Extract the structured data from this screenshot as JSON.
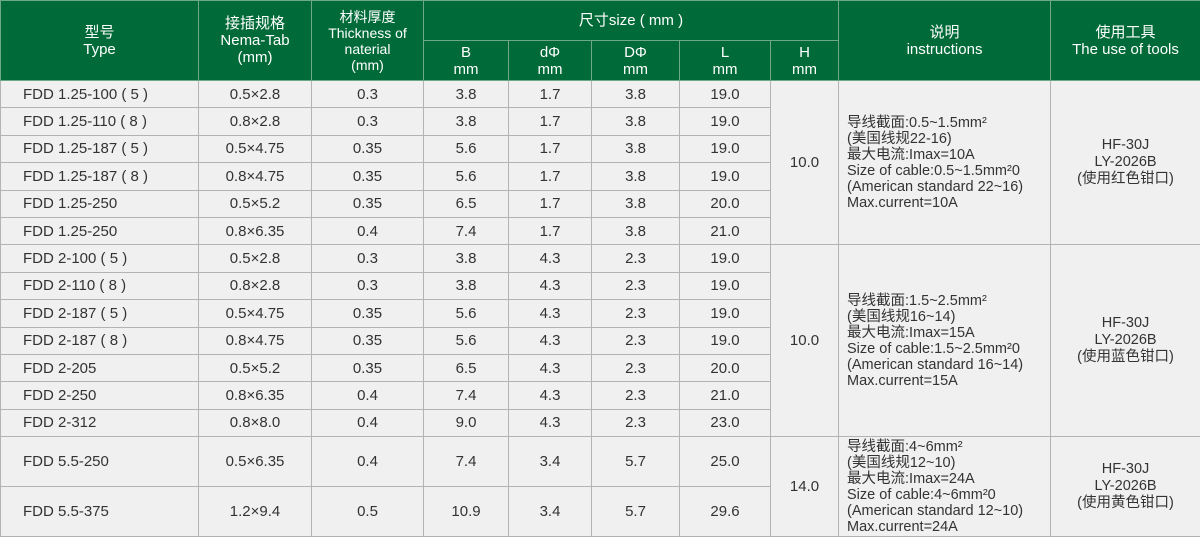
{
  "header": {
    "type": "型号\nType",
    "nema": "接插规格\nNema-Tab\n(mm)",
    "thickness": "材料厚度\nThickness of\nnaterial\n(mm)",
    "size": "尺寸size ( mm )",
    "b": "B\nmm",
    "d": "dΦ\nmm",
    "dd": "DΦ\nmm",
    "l": "L\nmm",
    "h": "H\nmm",
    "instructions": "说明\ninstructions",
    "tools": "使用工具\nThe use of tools"
  },
  "colors": {
    "header": "#006b38",
    "body": "#f0f0f0"
  },
  "groups": [
    {
      "h": "10.0",
      "note": "导线截面:0.5~1.5mm²\n(美国线规22-16)\n最大电流:Imax=10A\nSize of cable:0.5~1.5mm²0\n(American standard 22~16)\nMax.current=10A",
      "tool": "HF-30J\nLY-2026B\n(使用红色钳口)",
      "rows": [
        [
          "FDD 1.25-100 ( 5 )",
          "0.5×2.8",
          "0.3",
          "3.8",
          "1.7",
          "3.8",
          "19.0"
        ],
        [
          "FDD 1.25-110 ( 8 )",
          "0.8×2.8",
          "0.3",
          "3.8",
          "1.7",
          "3.8",
          "19.0"
        ],
        [
          "FDD 1.25-187 ( 5 )",
          "0.5×4.75",
          "0.35",
          "5.6",
          "1.7",
          "3.8",
          "19.0"
        ],
        [
          "FDD 1.25-187 ( 8 )",
          "0.8×4.75",
          "0.35",
          "5.6",
          "1.7",
          "3.8",
          "19.0"
        ],
        [
          "FDD 1.25-250",
          "0.5×5.2",
          "0.35",
          "6.5",
          "1.7",
          "3.8",
          "20.0"
        ],
        [
          "FDD 1.25-250",
          "0.8×6.35",
          "0.4",
          "7.4",
          "1.7",
          "3.8",
          "21.0"
        ]
      ]
    },
    {
      "h": "10.0",
      "note": "导线截面:1.5~2.5mm²\n(美国线规16~14)\n最大电流:Imax=15A\nSize of cable:1.5~2.5mm²0\n(American standard 16~14)\nMax.current=15A",
      "tool": "HF-30J\nLY-2026B\n(使用蓝色钳口)",
      "rows": [
        [
          "FDD 2-100 ( 5 )",
          "0.5×2.8",
          "0.3",
          "3.8",
          "4.3",
          "2.3",
          "19.0"
        ],
        [
          "FDD 2-110 ( 8 )",
          "0.8×2.8",
          "0.3",
          "3.8",
          "4.3",
          "2.3",
          "19.0"
        ],
        [
          "FDD 2-187 ( 5 )",
          "0.5×4.75",
          "0.35",
          "5.6",
          "4.3",
          "2.3",
          "19.0"
        ],
        [
          "FDD 2-187 ( 8 )",
          "0.8×4.75",
          "0.35",
          "5.6",
          "4.3",
          "2.3",
          "19.0"
        ],
        [
          "FDD 2-205",
          "0.5×5.2",
          "0.35",
          "6.5",
          "4.3",
          "2.3",
          "20.0"
        ],
        [
          "FDD 2-250",
          "0.8×6.35",
          "0.4",
          "7.4",
          "4.3",
          "2.3",
          "21.0"
        ],
        [
          "FDD 2-312",
          "0.8×8.0",
          "0.4",
          "9.0",
          "4.3",
          "2.3",
          "23.0"
        ]
      ]
    },
    {
      "h": "14.0",
      "note": "导线截面:4~6mm²\n(美国线规12~10)\n最大电流:Imax=24A\nSize of cable:4~6mm²0\n(American standard 12~10)\nMax.current=24A",
      "tool": "HF-30J\nLY-2026B\n(使用黄色钳口)",
      "rows": [
        [
          "FDD 5.5-250",
          "0.5×6.35",
          "0.4",
          "7.4",
          "3.4",
          "5.7",
          "25.0"
        ],
        [
          "FDD 5.5-375",
          "1.2×9.4",
          "0.5",
          "10.9",
          "3.4",
          "5.7",
          "29.6"
        ]
      ]
    }
  ]
}
